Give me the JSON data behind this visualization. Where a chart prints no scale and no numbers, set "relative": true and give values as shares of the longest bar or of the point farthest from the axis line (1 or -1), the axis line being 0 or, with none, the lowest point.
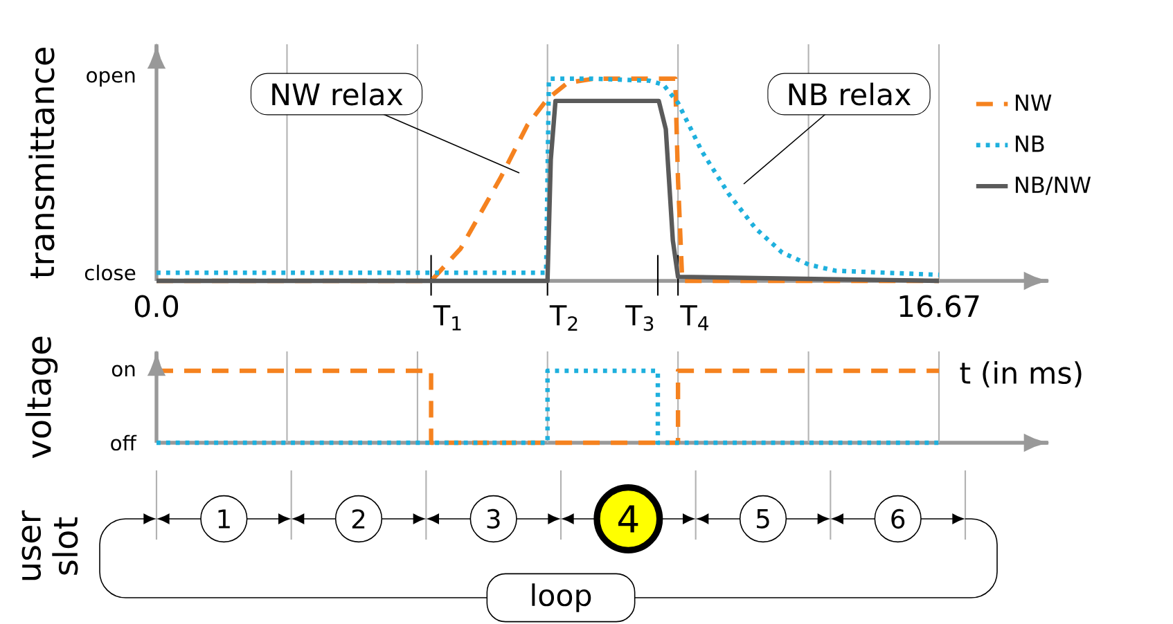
{
  "chart_data": [
    {
      "type": "line",
      "relative": true,
      "ylabel": "transmittance",
      "xlabel": "t (in ms)",
      "xlim": [
        0,
        19
      ],
      "xticks": [
        {
          "value": 0,
          "label": "0.0"
        },
        16.67
      ],
      "legend": "right",
      "marker": "none",
      "series": [
        {
          "name": "NW",
          "color": "#f5821f",
          "line_style": "dashed",
          "x": [
            0,
            5.85,
            6.48,
            7.33,
            7.9,
            8.33,
            8.76,
            9.33,
            11.05,
            11.11,
            11.2,
            16.67
          ],
          "values": [
            0,
            0,
            0.16,
            0.51,
            0.77,
            0.9,
            0.98,
            1.0,
            1.0,
            0.5,
            0,
            0
          ]
        },
        {
          "name": "NB",
          "color": "#1eb0dd",
          "line_style": "dotted",
          "x": [
            0,
            8.3,
            8.36,
            9.3,
            10.5,
            10.8,
            11.11,
            11.62,
            12.19,
            12.76,
            13.33,
            13.9,
            14.47,
            16.67
          ],
          "values": [
            0.04,
            0.04,
            1.0,
            1.0,
            0.99,
            0.97,
            0.88,
            0.64,
            0.43,
            0.26,
            0.14,
            0.08,
            0.05,
            0.03
          ]
        },
        {
          "name": "NB/NW",
          "color": "#5a5a5a",
          "line_style": "solid",
          "x": [
            0,
            8.33,
            8.4,
            8.5,
            10.7,
            10.85,
            11.0,
            11.11,
            16.67
          ],
          "values": [
            0,
            0,
            0.6,
            0.89,
            0.89,
            0.75,
            0.2,
            0.02,
            0
          ]
        }
      ],
      "ref_lines": [
        {
          "axis": "x",
          "value": 2.78,
          "color": "#b4b4b4"
        },
        {
          "axis": "x",
          "value": 5.56,
          "color": "#b4b4b4"
        },
        {
          "axis": "x",
          "value": 8.33,
          "color": "#b4b4b4"
        },
        {
          "axis": "x",
          "value": 11.11,
          "color": "#b4b4b4"
        },
        {
          "axis": "x",
          "value": 13.89,
          "color": "#b4b4b4"
        },
        {
          "axis": "x",
          "value": 16.67,
          "color": "#b4b4b4"
        },
        {
          "axis": "x",
          "value": 5.85,
          "label": "T$_{1}$",
          "color": "#000000"
        },
        {
          "axis": "x",
          "value": 8.33,
          "label": "T$_{2}$",
          "color": "#000000"
        },
        {
          "axis": "x",
          "value": 10.68,
          "label": "T$_{3}$",
          "color": "#000000"
        },
        {
          "axis": "x",
          "value": 11.11,
          "label": "T$_{4}$",
          "color": "#000000"
        }
      ],
      "annotations": [
        "close",
        "open",
        "NW relax",
        "NB relax"
      ]
    },
    {
      "type": "line",
      "relative": true,
      "ylabel": "voltage",
      "xlim": [
        0,
        19
      ],
      "marker": "none",
      "series": [
        {
          "color": "#f5821f",
          "line_style": "dashed",
          "x": [
            0,
            5.85,
            5.85,
            11.11,
            11.11,
            16.67
          ],
          "values": [
            1,
            1,
            0,
            0,
            1,
            1
          ]
        },
        {
          "color": "#1eb0dd",
          "line_style": "dotted",
          "x": [
            0,
            8.33,
            8.33,
            10.68,
            10.68,
            16.67
          ],
          "values": [
            0,
            0,
            1,
            1,
            0,
            0
          ]
        }
      ],
      "ref_lines": [
        {
          "axis": "x",
          "value": 2.78,
          "color": "#b4b4b4"
        },
        {
          "axis": "x",
          "value": 5.56,
          "color": "#b4b4b4"
        },
        {
          "axis": "x",
          "value": 8.33,
          "color": "#b4b4b4"
        },
        {
          "axis": "x",
          "value": 11.11,
          "color": "#b4b4b4"
        },
        {
          "axis": "x",
          "value": 13.89,
          "color": "#b4b4b4"
        },
        {
          "axis": "x",
          "value": 16.67,
          "color": "#b4b4b4"
        }
      ],
      "annotations": [
        "off",
        "on"
      ]
    },
    {
      "type": "other",
      "ylabel": "user slot",
      "categories": [
        "1",
        "2",
        "3",
        "4",
        "5",
        "6"
      ],
      "colors": [
        "#ffffff",
        "#ffffff",
        "#ffffff",
        "#ffff00",
        "#ffffff",
        "#ffffff"
      ],
      "annotations": [
        "loop"
      ]
    }
  ]
}
